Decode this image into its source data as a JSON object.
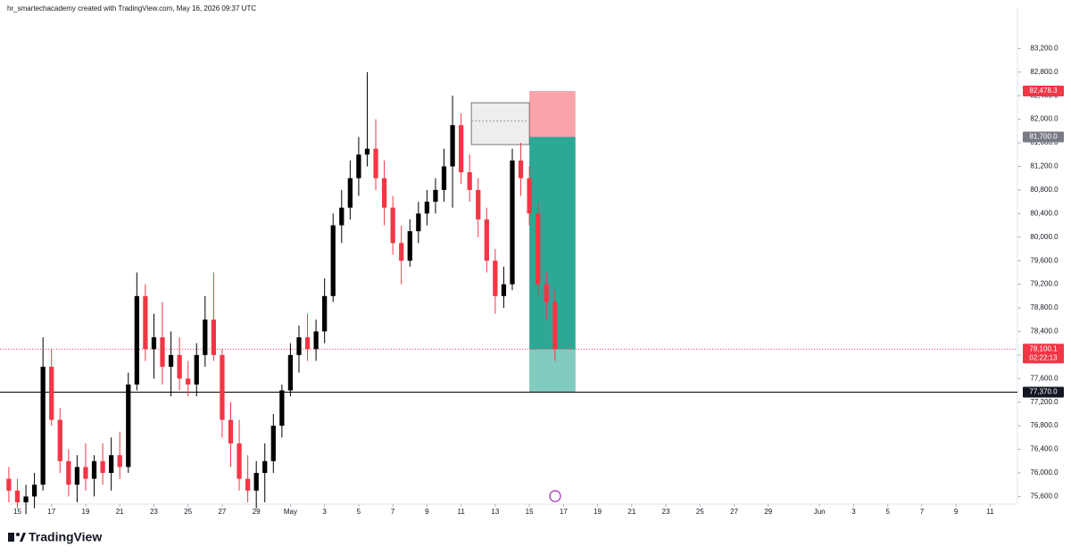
{
  "chart_data": {
    "type": "candlestick",
    "caption": "hr_smartechacademy created with TradingView.com, May 16, 2026 09:37 UTC",
    "brand": "TradingView",
    "up_color": "#000000",
    "down_color": "#f23645",
    "x": [
      -0.5,
      0,
      0.5,
      1,
      1.5,
      2,
      2.5,
      3,
      3.5,
      4,
      4.5,
      5,
      5.5,
      6,
      6.5,
      7,
      7.5,
      8,
      8.5,
      9,
      9.5,
      10,
      10.5,
      11,
      11.5,
      12,
      12.5,
      13,
      13.5,
      14,
      14.5,
      15,
      15.5,
      16,
      16.5,
      17,
      17.5,
      18,
      18.5,
      19,
      19.5,
      20,
      20.5,
      21,
      21.5,
      22,
      22.5,
      23,
      23.5,
      24,
      24.5,
      25,
      25.5,
      26,
      26.5,
      27,
      27.5,
      28,
      28.5,
      29,
      29.5,
      30,
      30.5,
      31,
      31.5
    ],
    "open": [
      75900,
      75700,
      75500,
      75600,
      75800,
      77800,
      76900,
      76200,
      75800,
      76100,
      75900,
      76200,
      76000,
      76300,
      76100,
      77500,
      79000,
      78100,
      78300,
      77800,
      78000,
      77600,
      77500,
      78000,
      78600,
      78000,
      76900,
      76500,
      75900,
      75700,
      76000,
      76200,
      76800,
      77400,
      78000,
      78300,
      78100,
      78400,
      79000,
      80200,
      80500,
      81000,
      81400,
      81500,
      81000,
      80500,
      79900,
      79600,
      80100,
      80400,
      80600,
      80800,
      81200,
      81900,
      81100,
      80800,
      80300,
      79600,
      79000,
      79200,
      81300,
      81000,
      80400,
      79200,
      78900
    ],
    "high": [
      76100,
      75900,
      75800,
      76000,
      78300,
      78100,
      77100,
      76400,
      76300,
      76500,
      76300,
      76500,
      76600,
      76700,
      77700,
      79400,
      79200,
      78700,
      78900,
      78400,
      78300,
      77900,
      78200,
      79000,
      79400,
      78100,
      77200,
      76900,
      76300,
      76200,
      76500,
      77000,
      77500,
      78200,
      78500,
      78700,
      78600,
      79300,
      80400,
      80800,
      81300,
      81700,
      82800,
      82000,
      81300,
      80700,
      80200,
      80300,
      80600,
      80800,
      81000,
      81500,
      82400,
      82100,
      81400,
      81000,
      80500,
      79800,
      79500,
      81500,
      81600,
      81200,
      80600,
      79400,
      79100
    ],
    "low": [
      75500,
      75400,
      75300,
      75400,
      75700,
      76800,
      76000,
      75600,
      75500,
      75700,
      75600,
      75800,
      75700,
      75900,
      76000,
      77400,
      77900,
      77600,
      77500,
      77300,
      77400,
      77300,
      77300,
      77800,
      77900,
      76600,
      76100,
      75700,
      75500,
      75400,
      75500,
      76000,
      76600,
      77300,
      77700,
      77900,
      77900,
      78200,
      78900,
      79900,
      80300,
      80700,
      81200,
      80800,
      80200,
      79700,
      79200,
      79500,
      79900,
      80200,
      80400,
      80600,
      80500,
      80900,
      80600,
      80000,
      79400,
      78700,
      78800,
      79100,
      80700,
      80200,
      79000,
      78600,
      77900
    ],
    "close": [
      75700,
      75500,
      75600,
      75800,
      77800,
      76900,
      76200,
      75800,
      76100,
      75900,
      76200,
      76000,
      76300,
      76100,
      77500,
      79000,
      78100,
      78300,
      77800,
      78000,
      77600,
      77500,
      78000,
      78600,
      78000,
      76900,
      76500,
      75900,
      75700,
      76000,
      76200,
      76800,
      77400,
      78000,
      78300,
      78100,
      78400,
      79000,
      80200,
      80500,
      81000,
      81400,
      81500,
      81000,
      80500,
      79900,
      79600,
      80100,
      80400,
      80600,
      80800,
      81200,
      81900,
      81100,
      80800,
      80300,
      79600,
      79000,
      79200,
      81300,
      81000,
      80400,
      79200,
      78900,
      78100
    ],
    "xlim": [
      -0.6,
      58.6
    ],
    "xticks": [
      {
        "value": 0,
        "label": "15"
      },
      {
        "value": 2,
        "label": "17"
      },
      {
        "value": 4,
        "label": "19"
      },
      {
        "value": 6,
        "label": "21"
      },
      {
        "value": 8,
        "label": "23"
      },
      {
        "value": 10,
        "label": "25"
      },
      {
        "value": 12,
        "label": "27"
      },
      {
        "value": 14,
        "label": "29"
      },
      {
        "value": 16,
        "label": "May"
      },
      {
        "value": 18,
        "label": "3"
      },
      {
        "value": 20,
        "label": "5"
      },
      {
        "value": 22,
        "label": "7"
      },
      {
        "value": 24,
        "label": "9"
      },
      {
        "value": 26,
        "label": "11"
      },
      {
        "value": 28,
        "label": "13"
      },
      {
        "value": 30,
        "label": "15"
      },
      {
        "value": 32,
        "label": "17"
      },
      {
        "value": 34,
        "label": "19"
      },
      {
        "value": 36,
        "label": "21"
      },
      {
        "value": 38,
        "label": "23"
      },
      {
        "value": 40,
        "label": "25"
      },
      {
        "value": 42,
        "label": "27"
      },
      {
        "value": 44,
        "label": "29"
      },
      {
        "value": 47,
        "label": "Jun"
      },
      {
        "value": 49,
        "label": "3"
      },
      {
        "value": 51,
        "label": "5"
      },
      {
        "value": 53,
        "label": "7"
      },
      {
        "value": 55,
        "label": "9"
      },
      {
        "value": 57,
        "label": "11"
      }
    ],
    "ylim": [
      75470,
      83720
    ],
    "yticks": [
      {
        "value": 75600,
        "label": "75,600.0"
      },
      {
        "value": 76000,
        "label": "76,000.0"
      },
      {
        "value": 76400,
        "label": "76,400.0"
      },
      {
        "value": 76800,
        "label": "76,800.0"
      },
      {
        "value": 77200,
        "label": "77,200.0"
      },
      {
        "value": 77600,
        "label": "77,600.0"
      },
      {
        "value": 78000,
        "label": "78,000.0"
      },
      {
        "value": 78400,
        "label": "78,400.0"
      },
      {
        "value": 78800,
        "label": "78,800.0"
      },
      {
        "value": 79200,
        "label": "79,200.0"
      },
      {
        "value": 79600,
        "label": "79,600.0"
      },
      {
        "value": 80000,
        "label": "80,000.0"
      },
      {
        "value": 80400,
        "label": "80,400.0"
      },
      {
        "value": 80800,
        "label": "80,800.0"
      },
      {
        "value": 81200,
        "label": "81,200.0"
      },
      {
        "value": 81600,
        "label": "81,600.0"
      },
      {
        "value": 82000,
        "label": "82,000.0"
      },
      {
        "value": 82400,
        "label": "82,400.0"
      },
      {
        "value": 82800,
        "label": "82,800.0"
      },
      {
        "value": 83200,
        "label": "83,200.0"
      }
    ],
    "zone": {
      "top": 82280,
      "bottom": 81570,
      "mid": 81970,
      "x": [
        26.6,
        30
      ]
    },
    "position": {
      "entry": {
        "value": 81700,
        "label": "81,700.0"
      },
      "stop": {
        "value": 82478.3,
        "label": "82,478.3"
      },
      "target": 77370,
      "x": [
        30,
        32.7
      ]
    },
    "hline": {
      "value": 77370,
      "label": "77,370.0"
    },
    "last_price": {
      "value": 78100.1,
      "label": "78,100.1",
      "countdown": "02:22:13"
    }
  }
}
